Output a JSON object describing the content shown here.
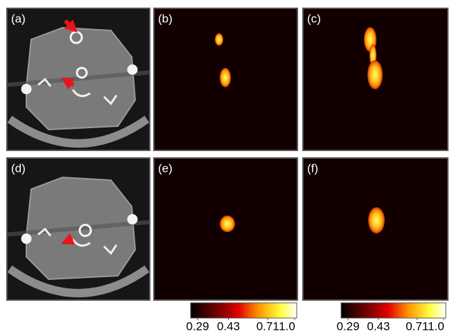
{
  "panels": [
    {
      "label": "(a)"
    },
    {
      "label": "(b)"
    },
    {
      "label": "(c)"
    },
    {
      "label": "(d)"
    },
    {
      "label": "(e)"
    },
    {
      "label": "(f)"
    }
  ],
  "colorbar_scale": "log",
  "colorbars": [
    {
      "ticks": [
        0.29,
        0.43,
        0.71,
        {
          "value": 1.0,
          "label": "1.0"
        }
      ]
    },
    {
      "ticks": [
        0.29,
        0.43,
        0.71,
        {
          "value": 1.0,
          "label": "1.0"
        }
      ]
    }
  ]
}
